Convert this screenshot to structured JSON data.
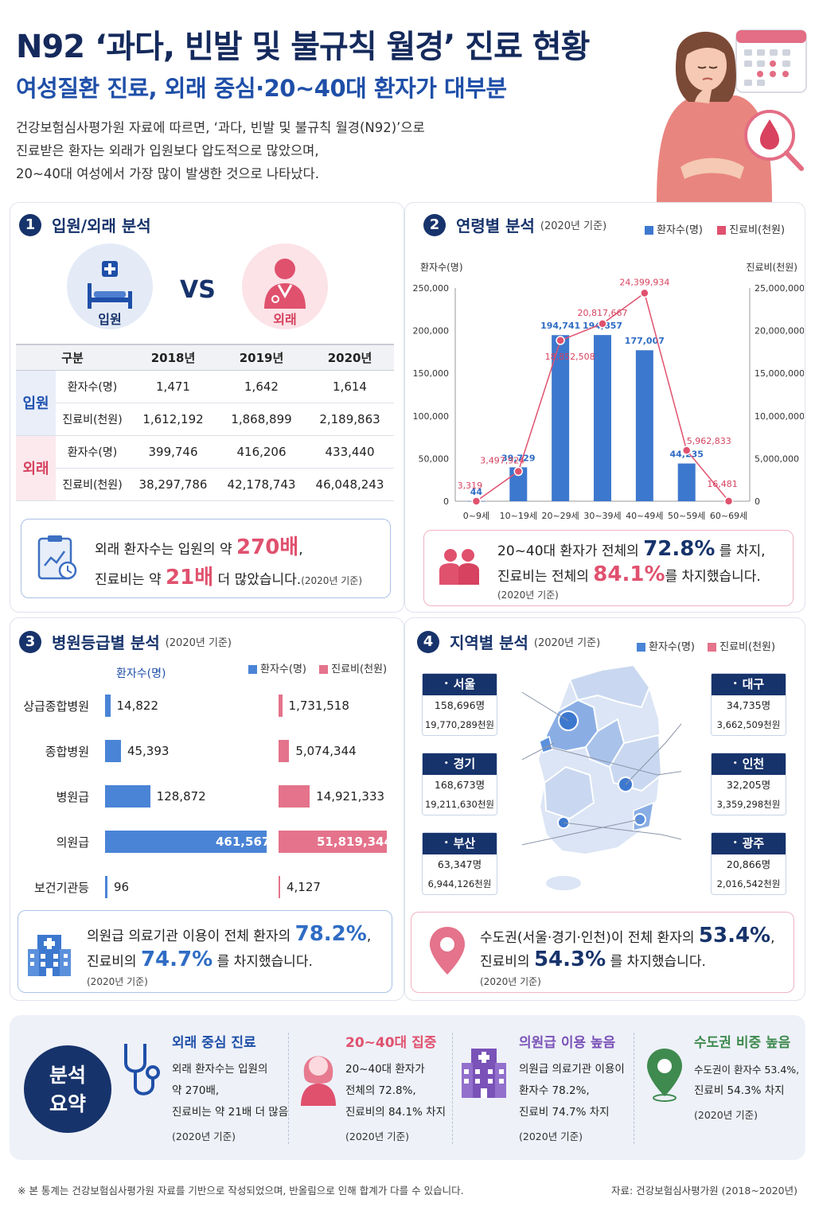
{
  "header": {
    "title": "N92 ‘과다, 빈발 및 불규칙 월경’ 진료 현황",
    "subtitle": "여성질환 진료, 외래 중심·20~40대 환자가 대부분",
    "intro": [
      "건강보험심사평가원 자료에 따르면, ‘과다, 빈발 및 불규칙 월경(N92)’으로",
      "진료받은 환자는 외래가 입원보다 압도적으로 많았으며,",
      "20~40대 여성에서 가장 많이 발생한 것으로 나타났다."
    ]
  },
  "section1": {
    "num": "1",
    "title": "입원/외래 분석",
    "inpatient_label": "입원",
    "vs": "VS",
    "outpatient_label": "외래",
    "table": {
      "headers": [
        "구분",
        "2018년",
        "2019년",
        "2020년"
      ],
      "groups": [
        {
          "name": "입원",
          "rows": [
            {
              "label": "환자수(명)",
              "values": [
                "1,471",
                "1,642",
                "1,614"
              ]
            },
            {
              "label": "진료비(천원)",
              "values": [
                "1,612,192",
                "1,868,899",
                "2,189,863"
              ]
            }
          ]
        },
        {
          "name": "외래",
          "rows": [
            {
              "label": "환자수(명)",
              "values": [
                "399,746",
                "416,206",
                "433,440"
              ]
            },
            {
              "label": "진료비(천원)",
              "values": [
                "38,297,786",
                "42,178,743",
                "46,048,243"
              ]
            }
          ]
        }
      ]
    },
    "callout": {
      "l1_pre": "외래 환자수는 입원의 약 ",
      "l1_big": "270배",
      "l1_post": ",",
      "l2_pre": "진료비는 약 ",
      "l2_big": "21배",
      "l2_post": " 더 많았습니다.",
      "l2_note": "(2020년 기준)"
    }
  },
  "section2": {
    "num": "2",
    "title": "연령별 분석",
    "sub": "(2020년 기준)",
    "legend_patients": "환자수(명)",
    "legend_cost": "진료비(천원)",
    "callout": {
      "l1_pre": "20~40대 환자가 전체의 ",
      "l1_big": "72.8%",
      "l1_post": " 를 차지,",
      "l2_pre": "진료비는 전체의 ",
      "l2_big": "84.1%",
      "l2_post": "를 차지했습니다.",
      "note": "(2020년 기준)"
    }
  },
  "chart_data": {
    "type": "bar",
    "categories": [
      "0~9세",
      "10~19세",
      "20~29세",
      "30~39세",
      "40~49세",
      "50~59세",
      "60~69세"
    ],
    "series": [
      {
        "name": "환자수(명)",
        "type": "bar",
        "axis": "left",
        "values": [
          44,
          39729,
          194741,
          194857,
          177007,
          44235,
          0
        ],
        "labels": [
          "44",
          "39,729",
          "194,741",
          "194,857",
          "177,007",
          "44,235",
          ""
        ]
      },
      {
        "name": "진료비(천원)",
        "type": "line",
        "axis": "right",
        "values": [
          3319,
          3497924,
          18852508,
          20817667,
          24399934,
          5962833,
          16481
        ],
        "labels": [
          "3,319",
          "3,497,924",
          "18,852,508",
          "20,817,667",
          "24,399,934",
          "5,962,833",
          "16,481"
        ]
      }
    ],
    "ylabel": "환자수(명)",
    "y2label": "진료비(천원)",
    "ylim": [
      0,
      250000
    ],
    "y2lim": [
      0,
      25000000
    ],
    "yticks": [
      "0",
      "50,000",
      "100,000",
      "150,000",
      "200,000",
      "250,000"
    ],
    "y2ticks": [
      "0",
      "5,000,000",
      "10,000,000",
      "15,000,000",
      "20,000,000",
      "25,000,000"
    ],
    "colors": {
      "bar": "#3d78cf",
      "line": "#e0516e"
    }
  },
  "section3": {
    "num": "3",
    "title": "병원등급별 분석",
    "sub": "(2020년 기준)",
    "axis_label": "환자수(명)",
    "legend_patients": "환자수(명)",
    "legend_cost": "진료비(천원)",
    "rows": [
      {
        "label": "상급종합병원",
        "patients": 14822,
        "patients_text": "14,822",
        "cost": 1731518,
        "cost_text": "1,731,518"
      },
      {
        "label": "종합병원",
        "patients": 45393,
        "patients_text": "45,393",
        "cost": 5074344,
        "cost_text": "5,074,344"
      },
      {
        "label": "병원급",
        "patients": 128872,
        "patients_text": "128,872",
        "cost": 14921333,
        "cost_text": "14,921,333"
      },
      {
        "label": "의원급",
        "patients": 461567,
        "patients_text": "461,567",
        "cost": 51819344,
        "cost_text": "51,819,344"
      },
      {
        "label": "보건기관등",
        "patients": 96,
        "patients_text": "96",
        "cost": 4127,
        "cost_text": "4,127"
      }
    ],
    "callout": {
      "l1_pre": "의원급 의료기관 이용이 전체 환자의 ",
      "l1_big": "78.2%",
      "l1_post": ",",
      "l2_pre": "진료비의 ",
      "l2_big": "74.7%",
      "l2_post": " 를 차지했습니다.",
      "note": "(2020년 기준)"
    }
  },
  "section4": {
    "num": "4",
    "title": "지역별 분석",
    "sub": "(2020년 기준)",
    "legend_patients": "환자수(명)",
    "legend_cost": "진료비(천원)",
    "regions": [
      {
        "name": "서울",
        "patients": "158,696명",
        "cost": "19,770,289천원"
      },
      {
        "name": "경기",
        "patients": "168,673명",
        "cost": "19,211,630천원"
      },
      {
        "name": "부산",
        "patients": "63,347명",
        "cost": "6,944,126천원"
      },
      {
        "name": "대구",
        "patients": "34,735명",
        "cost": "3,662,509천원"
      },
      {
        "name": "인천",
        "patients": "32,205명",
        "cost": "3,359,298천원"
      },
      {
        "name": "광주",
        "patients": "20,866명",
        "cost": "2,016,542천원"
      }
    ],
    "callout": {
      "l1_pre": "수도권(서울·경기·인천)이 전체 환자의 ",
      "l1_big": "53.4%",
      "l1_post": ",",
      "l2_pre": "진료비의 ",
      "l2_big": "54.3%",
      "l2_post": " 를 차지했습니다.",
      "note": "(2020년 기준)"
    }
  },
  "summary": {
    "badge": [
      "분석",
      "요약"
    ],
    "items": [
      {
        "head": "외래 중심 진료",
        "lines": [
          "외래 환자수는 입원의",
          "약 270배,",
          "진료비는 약 21배 더 많음"
        ],
        "note": "(2020년 기준)",
        "icon": "stethoscope-icon",
        "color": "#1f4fa8"
      },
      {
        "head": "20~40대 집중",
        "lines": [
          "20~40대 환자가",
          "전체의 72.8%,",
          "진료비의 84.1% 차지"
        ],
        "note": "(2020년 기준)",
        "icon": "woman-icon",
        "color": "#e0516e"
      },
      {
        "head": "의원급 이용 높음",
        "lines": [
          "의원급 의료기관 이용이",
          "환자수 78.2%,",
          "진료비 74.7% 차지"
        ],
        "note": "(2020년 기준)",
        "icon": "hospital-icon",
        "color": "#7a52b8"
      },
      {
        "head": "수도권 비중 높음",
        "lines": [
          "수도권이 환자수 53.4%,",
          "진료비 54.3% 차지"
        ],
        "note": "(2020년 기준)",
        "icon": "location-pin-icon",
        "color": "#3f8a4f"
      }
    ]
  },
  "footer": {
    "note": "※ 본 통계는 건강보험심사평가원 자료를 기반으로 작성되었으며, 반올림으로 인해 합계가 다를 수 있습니다.",
    "source": "자료: 건강보험심사평가원 (2018~2020년)"
  }
}
